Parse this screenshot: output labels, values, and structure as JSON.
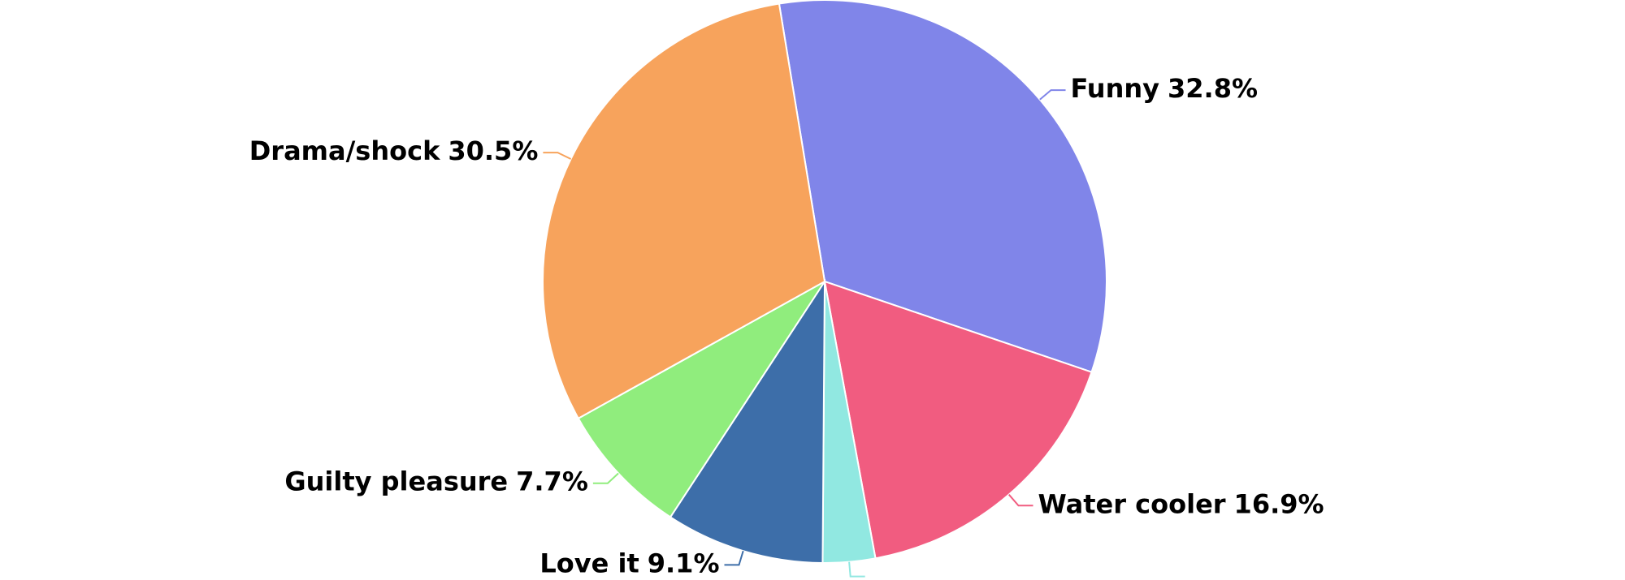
{
  "chart_data": {
    "type": "pie",
    "categories": [
      "Funny",
      "Water cooler",
      null,
      "Love it",
      "Guilty pleasure",
      "Drama/shock"
    ],
    "values": [
      32.8,
      16.9,
      3.0,
      9.1,
      7.7,
      30.5
    ],
    "value_labels": [
      "32.8%",
      "16.9%",
      null,
      "9.1%",
      "7.7%",
      "30.5%"
    ],
    "colors": [
      "#8085e9",
      "#f15c80",
      "#91e8e1",
      "#3d6ea9",
      "#90ed7d",
      "#f7a35c"
    ]
  }
}
